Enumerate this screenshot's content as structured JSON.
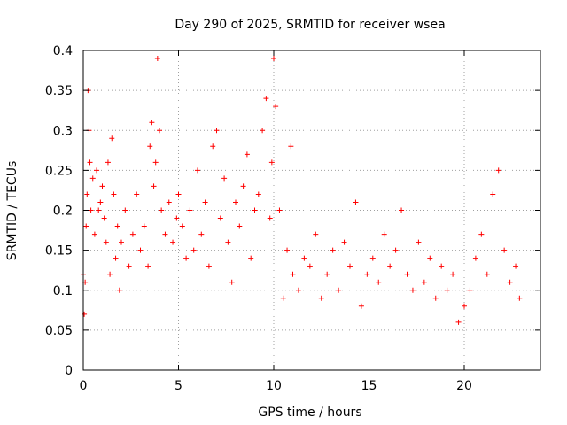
{
  "chart_data": {
    "type": "scatter",
    "title": "Day 290 of 2025, SRMTID for receiver wsea",
    "xlabel": "GPS time / hours",
    "ylabel": "SRMTID / TECUs",
    "xlim": [
      0,
      24
    ],
    "ylim": [
      0,
      0.4
    ],
    "x_ticks": [
      0,
      5,
      10,
      15,
      20
    ],
    "x_tick_labels": [
      "0",
      "5",
      "10",
      "15",
      "20"
    ],
    "y_ticks": [
      0,
      0.05,
      0.1,
      0.15,
      0.2,
      0.25,
      0.3,
      0.35,
      0.4
    ],
    "y_tick_labels": [
      "0",
      "0.05",
      "0.1",
      "0.15",
      "0.2",
      "0.25",
      "0.3",
      "0.35",
      "0.4"
    ],
    "grid": true,
    "marker": "plus",
    "marker_color": "#ff0000",
    "series": [
      {
        "name": "SRMTID",
        "points": [
          [
            0.0,
            0.12
          ],
          [
            0.05,
            0.07
          ],
          [
            0.1,
            0.11
          ],
          [
            0.15,
            0.18
          ],
          [
            0.2,
            0.22
          ],
          [
            0.25,
            0.35
          ],
          [
            0.3,
            0.3
          ],
          [
            0.35,
            0.26
          ],
          [
            0.4,
            0.2
          ],
          [
            0.5,
            0.24
          ],
          [
            0.6,
            0.17
          ],
          [
            0.7,
            0.25
          ],
          [
            0.8,
            0.2
          ],
          [
            0.9,
            0.21
          ],
          [
            1.0,
            0.23
          ],
          [
            1.1,
            0.19
          ],
          [
            1.2,
            0.16
          ],
          [
            1.3,
            0.26
          ],
          [
            1.4,
            0.12
          ],
          [
            1.5,
            0.29
          ],
          [
            1.6,
            0.22
          ],
          [
            1.7,
            0.14
          ],
          [
            1.8,
            0.18
          ],
          [
            1.9,
            0.1
          ],
          [
            2.0,
            0.16
          ],
          [
            2.2,
            0.2
          ],
          [
            2.4,
            0.13
          ],
          [
            2.6,
            0.17
          ],
          [
            2.8,
            0.22
          ],
          [
            3.0,
            0.15
          ],
          [
            3.2,
            0.18
          ],
          [
            3.4,
            0.13
          ],
          [
            3.5,
            0.28
          ],
          [
            3.6,
            0.31
          ],
          [
            3.7,
            0.23
          ],
          [
            3.8,
            0.26
          ],
          [
            3.9,
            0.39
          ],
          [
            4.0,
            0.3
          ],
          [
            4.1,
            0.2
          ],
          [
            4.3,
            0.17
          ],
          [
            4.5,
            0.21
          ],
          [
            4.7,
            0.16
          ],
          [
            4.9,
            0.19
          ],
          [
            5.0,
            0.22
          ],
          [
            5.2,
            0.18
          ],
          [
            5.4,
            0.14
          ],
          [
            5.6,
            0.2
          ],
          [
            5.8,
            0.15
          ],
          [
            6.0,
            0.25
          ],
          [
            6.2,
            0.17
          ],
          [
            6.4,
            0.21
          ],
          [
            6.6,
            0.13
          ],
          [
            6.8,
            0.28
          ],
          [
            7.0,
            0.3
          ],
          [
            7.2,
            0.19
          ],
          [
            7.4,
            0.24
          ],
          [
            7.6,
            0.16
          ],
          [
            7.8,
            0.11
          ],
          [
            8.0,
            0.21
          ],
          [
            8.2,
            0.18
          ],
          [
            8.4,
            0.23
          ],
          [
            8.6,
            0.27
          ],
          [
            8.8,
            0.14
          ],
          [
            9.0,
            0.2
          ],
          [
            9.2,
            0.22
          ],
          [
            9.4,
            0.3
          ],
          [
            9.6,
            0.34
          ],
          [
            9.8,
            0.19
          ],
          [
            9.9,
            0.26
          ],
          [
            10.0,
            0.39
          ],
          [
            10.1,
            0.33
          ],
          [
            10.3,
            0.2
          ],
          [
            10.5,
            0.09
          ],
          [
            10.7,
            0.15
          ],
          [
            10.9,
            0.28
          ],
          [
            11.0,
            0.12
          ],
          [
            11.3,
            0.1
          ],
          [
            11.6,
            0.14
          ],
          [
            11.9,
            0.13
          ],
          [
            12.2,
            0.17
          ],
          [
            12.5,
            0.09
          ],
          [
            12.8,
            0.12
          ],
          [
            13.1,
            0.15
          ],
          [
            13.4,
            0.1
          ],
          [
            13.7,
            0.16
          ],
          [
            14.0,
            0.13
          ],
          [
            14.3,
            0.21
          ],
          [
            14.6,
            0.08
          ],
          [
            14.9,
            0.12
          ],
          [
            15.2,
            0.14
          ],
          [
            15.5,
            0.11
          ],
          [
            15.8,
            0.17
          ],
          [
            16.1,
            0.13
          ],
          [
            16.4,
            0.15
          ],
          [
            16.7,
            0.2
          ],
          [
            17.0,
            0.12
          ],
          [
            17.3,
            0.1
          ],
          [
            17.6,
            0.16
          ],
          [
            17.9,
            0.11
          ],
          [
            18.2,
            0.14
          ],
          [
            18.5,
            0.09
          ],
          [
            18.8,
            0.13
          ],
          [
            19.1,
            0.1
          ],
          [
            19.4,
            0.12
          ],
          [
            19.7,
            0.06
          ],
          [
            20.0,
            0.08
          ],
          [
            20.3,
            0.1
          ],
          [
            20.6,
            0.14
          ],
          [
            20.9,
            0.17
          ],
          [
            21.2,
            0.12
          ],
          [
            21.5,
            0.22
          ],
          [
            21.8,
            0.25
          ],
          [
            22.1,
            0.15
          ],
          [
            22.4,
            0.11
          ],
          [
            22.7,
            0.13
          ],
          [
            22.9,
            0.09
          ]
        ]
      }
    ]
  }
}
